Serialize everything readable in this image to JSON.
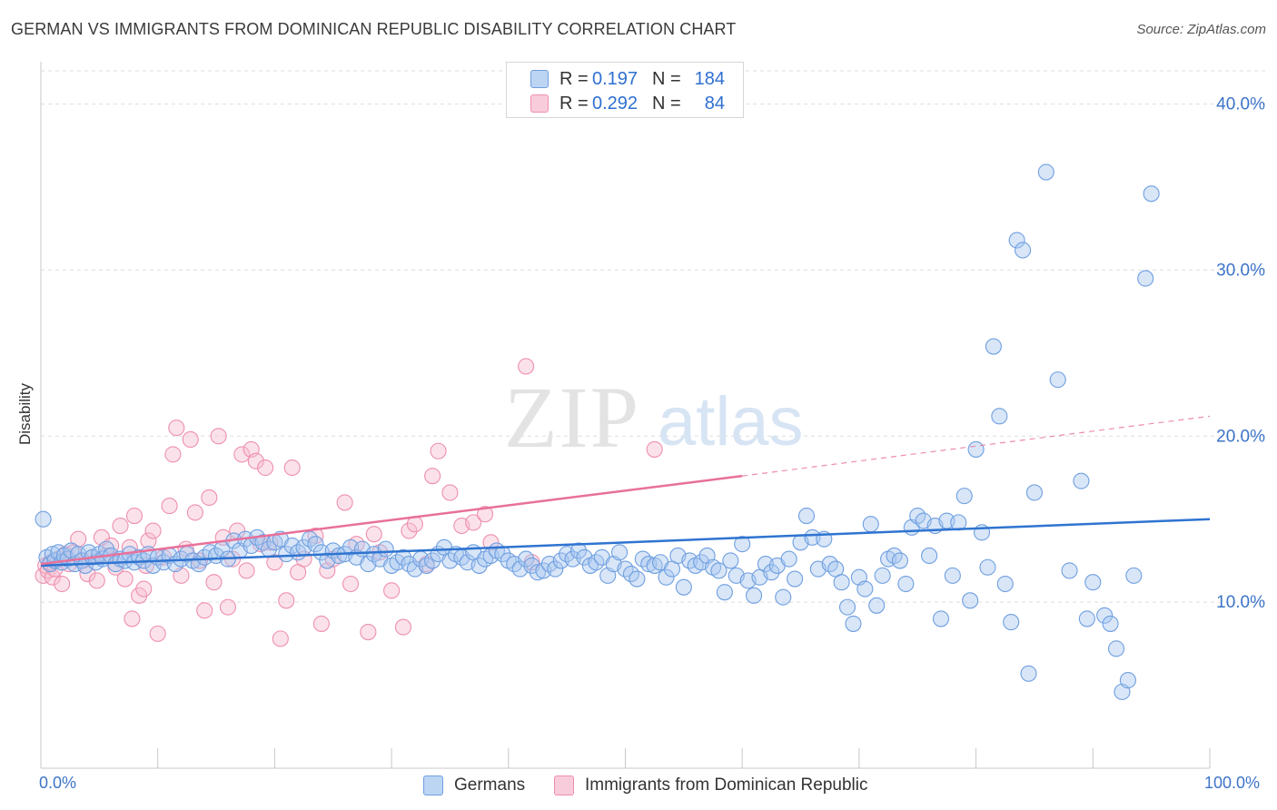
{
  "title": "GERMAN VS IMMIGRANTS FROM DOMINICAN REPUBLIC DISABILITY CORRELATION CHART",
  "source": "Source: ZipAtlas.com",
  "watermark": {
    "zip": "ZIP",
    "atlas": "atlas"
  },
  "colors": {
    "blue_fill": "#a9c8ef",
    "blue_stroke": "#6f9fe0",
    "blue_line": "#2f74d0",
    "pink_fill": "#f6bed0",
    "pink_stroke": "#ee8fae",
    "pink_line": "#e8709a",
    "axis_text": "#3d74c9",
    "grid": "#dddddd"
  },
  "legend": {
    "rows": [
      {
        "r_label": "R =",
        "r_value": "0.197",
        "n_label": "N =",
        "n_value": "184",
        "series": "Germans"
      },
      {
        "r_label": "R =",
        "r_value": "0.292",
        "n_label": "N =",
        "n_value": "84",
        "series": "Immigrants from Dominican Republic"
      }
    ]
  },
  "bottom_legend": {
    "germans": "Germans",
    "dominican": "Immigrants from Dominican Republic"
  },
  "chart_data": {
    "type": "scatter",
    "title": "GERMAN VS IMMIGRANTS FROM DOMINICAN REPUBLIC DISABILITY CORRELATION CHART",
    "xlabel": "",
    "ylabel": "Disability",
    "xlim": [
      0,
      100
    ],
    "ylim": [
      0,
      42
    ],
    "x_tick_labels": [
      "0.0%",
      "100.0%"
    ],
    "y_ticks": [
      10,
      20,
      30,
      40
    ],
    "y_tick_labels": [
      "10.0%",
      "20.0%",
      "30.0%",
      "40.0%"
    ],
    "grid": true,
    "legend_position": "top-center",
    "series": [
      {
        "name": "Germans",
        "color": "#a9c8ef",
        "trend": {
          "x": [
            0,
            100
          ],
          "y": [
            12.2,
            15.0
          ],
          "style": "solid"
        },
        "points": [
          [
            0.2,
            15.0
          ],
          [
            0.5,
            12.7
          ],
          [
            0.8,
            12.3
          ],
          [
            1.0,
            12.9
          ],
          [
            1.2,
            12.5
          ],
          [
            1.5,
            13.0
          ],
          [
            1.8,
            12.4
          ],
          [
            2.0,
            12.8
          ],
          [
            2.3,
            12.6
          ],
          [
            2.6,
            13.1
          ],
          [
            2.9,
            12.3
          ],
          [
            3.2,
            12.9
          ],
          [
            3.5,
            12.5
          ],
          [
            3.8,
            12.2
          ],
          [
            4.1,
            13.0
          ],
          [
            4.4,
            12.7
          ],
          [
            4.7,
            12.4
          ],
          [
            5.0,
            12.9
          ],
          [
            5.3,
            12.6
          ],
          [
            5.6,
            13.2
          ],
          [
            6.0,
            12.8
          ],
          [
            6.4,
            12.3
          ],
          [
            6.8,
            12.6
          ],
          [
            7.2,
            12.5
          ],
          [
            7.6,
            12.9
          ],
          [
            8.0,
            12.4
          ],
          [
            8.4,
            12.7
          ],
          [
            8.8,
            12.5
          ],
          [
            9.2,
            12.9
          ],
          [
            9.6,
            12.2
          ],
          [
            10.0,
            12.7
          ],
          [
            10.5,
            12.4
          ],
          [
            11.0,
            12.8
          ],
          [
            11.5,
            12.3
          ],
          [
            12.0,
            12.6
          ],
          [
            12.5,
            12.9
          ],
          [
            13.0,
            12.5
          ],
          [
            13.5,
            12.3
          ],
          [
            14.0,
            12.7
          ],
          [
            14.5,
            13.0
          ],
          [
            15.0,
            12.8
          ],
          [
            15.5,
            13.2
          ],
          [
            16.0,
            12.6
          ],
          [
            16.5,
            13.7
          ],
          [
            17.0,
            13.1
          ],
          [
            17.5,
            13.8
          ],
          [
            18.0,
            13.4
          ],
          [
            18.5,
            13.9
          ],
          [
            19.0,
            13.6
          ],
          [
            19.5,
            13.2
          ],
          [
            20.0,
            13.6
          ],
          [
            20.5,
            13.8
          ],
          [
            21.0,
            12.9
          ],
          [
            21.5,
            13.4
          ],
          [
            22.0,
            13.0
          ],
          [
            22.5,
            13.3
          ],
          [
            23.0,
            13.8
          ],
          [
            23.5,
            13.5
          ],
          [
            24.0,
            13.0
          ],
          [
            24.5,
            12.5
          ],
          [
            25.0,
            13.1
          ],
          [
            25.5,
            12.8
          ],
          [
            26.0,
            12.9
          ],
          [
            26.5,
            13.3
          ],
          [
            27.0,
            12.7
          ],
          [
            27.5,
            13.2
          ],
          [
            28.0,
            12.3
          ],
          [
            28.5,
            12.9
          ],
          [
            29.0,
            12.6
          ],
          [
            29.5,
            13.2
          ],
          [
            30.0,
            12.2
          ],
          [
            30.5,
            12.4
          ],
          [
            31.0,
            12.7
          ],
          [
            31.5,
            12.3
          ],
          [
            32.0,
            12.0
          ],
          [
            32.5,
            12.6
          ],
          [
            33.0,
            12.2
          ],
          [
            33.5,
            12.5
          ],
          [
            34.0,
            12.9
          ],
          [
            34.5,
            13.3
          ],
          [
            35.0,
            12.5
          ],
          [
            35.5,
            12.9
          ],
          [
            36.0,
            12.7
          ],
          [
            36.5,
            12.4
          ],
          [
            37.0,
            13.0
          ],
          [
            37.5,
            12.2
          ],
          [
            38.0,
            12.6
          ],
          [
            38.5,
            12.8
          ],
          [
            39.0,
            13.1
          ],
          [
            39.5,
            12.9
          ],
          [
            40.0,
            12.5
          ],
          [
            40.5,
            12.3
          ],
          [
            41.0,
            12.0
          ],
          [
            41.5,
            12.6
          ],
          [
            42.0,
            12.2
          ],
          [
            42.5,
            11.8
          ],
          [
            43.0,
            11.9
          ],
          [
            43.5,
            12.3
          ],
          [
            44.0,
            12.0
          ],
          [
            44.5,
            12.5
          ],
          [
            45.0,
            12.9
          ],
          [
            45.5,
            12.6
          ],
          [
            46.0,
            13.1
          ],
          [
            46.5,
            12.7
          ],
          [
            47.0,
            12.2
          ],
          [
            47.5,
            12.4
          ],
          [
            48.0,
            12.7
          ],
          [
            48.5,
            11.6
          ],
          [
            49.0,
            12.3
          ],
          [
            49.5,
            13.0
          ],
          [
            50.0,
            12.0
          ],
          [
            50.5,
            11.7
          ],
          [
            51.0,
            11.4
          ],
          [
            51.5,
            12.6
          ],
          [
            52.0,
            12.3
          ],
          [
            52.5,
            12.2
          ],
          [
            53.0,
            12.4
          ],
          [
            53.5,
            11.5
          ],
          [
            54.0,
            12.0
          ],
          [
            54.5,
            12.8
          ],
          [
            55.0,
            10.9
          ],
          [
            55.5,
            12.5
          ],
          [
            56.0,
            12.2
          ],
          [
            56.5,
            12.4
          ],
          [
            57.0,
            12.8
          ],
          [
            57.5,
            12.1
          ],
          [
            58.0,
            11.9
          ],
          [
            58.5,
            10.6
          ],
          [
            59.0,
            12.5
          ],
          [
            59.5,
            11.6
          ],
          [
            60.0,
            13.5
          ],
          [
            60.5,
            11.3
          ],
          [
            61.0,
            10.4
          ],
          [
            61.5,
            11.5
          ],
          [
            62.0,
            12.3
          ],
          [
            62.5,
            11.8
          ],
          [
            63.0,
            12.2
          ],
          [
            63.5,
            10.3
          ],
          [
            64.0,
            12.6
          ],
          [
            64.5,
            11.4
          ],
          [
            65.0,
            13.6
          ],
          [
            65.5,
            15.2
          ],
          [
            66.0,
            13.9
          ],
          [
            66.5,
            12.0
          ],
          [
            67.0,
            13.8
          ],
          [
            67.5,
            12.3
          ],
          [
            68.0,
            12.0
          ],
          [
            68.5,
            11.2
          ],
          [
            69.0,
            9.7
          ],
          [
            69.5,
            8.7
          ],
          [
            70.0,
            11.5
          ],
          [
            70.5,
            10.8
          ],
          [
            71.0,
            14.7
          ],
          [
            71.5,
            9.8
          ],
          [
            72.0,
            11.6
          ],
          [
            72.5,
            12.6
          ],
          [
            73.0,
            12.8
          ],
          [
            73.5,
            12.5
          ],
          [
            74.0,
            11.1
          ],
          [
            74.5,
            14.5
          ],
          [
            75.0,
            15.2
          ],
          [
            75.5,
            14.9
          ],
          [
            76.0,
            12.8
          ],
          [
            76.5,
            14.6
          ],
          [
            77.0,
            9.0
          ],
          [
            77.5,
            14.9
          ],
          [
            78.0,
            11.6
          ],
          [
            78.5,
            14.8
          ],
          [
            79.0,
            16.4
          ],
          [
            79.5,
            10.1
          ],
          [
            80.0,
            19.2
          ],
          [
            80.5,
            14.2
          ],
          [
            81.0,
            12.1
          ],
          [
            81.5,
            25.4
          ],
          [
            82.0,
            21.2
          ],
          [
            82.5,
            11.1
          ],
          [
            83.0,
            8.8
          ],
          [
            83.5,
            31.8
          ],
          [
            84.0,
            31.2
          ],
          [
            84.5,
            5.7
          ],
          [
            85.0,
            16.6
          ],
          [
            86.0,
            35.9
          ],
          [
            87.0,
            23.4
          ],
          [
            88.0,
            11.9
          ],
          [
            89.0,
            17.3
          ],
          [
            89.5,
            9.0
          ],
          [
            90.0,
            11.2
          ],
          [
            91.0,
            9.2
          ],
          [
            91.5,
            8.7
          ],
          [
            92.0,
            7.2
          ],
          [
            92.5,
            4.6
          ],
          [
            93.0,
            5.3
          ],
          [
            93.5,
            11.6
          ],
          [
            95.0,
            34.6
          ],
          [
            94.5,
            29.5
          ]
        ]
      },
      {
        "name": "Immigrants from Dominican Republic",
        "color": "#f6bed0",
        "trend": {
          "x": [
            0,
            60
          ],
          "y": [
            12.3,
            17.6
          ],
          "x_dashed": [
            60,
            100
          ],
          "y_dashed": [
            17.6,
            21.2
          ],
          "style": "solid-then-dashed"
        },
        "points": [
          [
            0.2,
            11.6
          ],
          [
            0.4,
            12.2
          ],
          [
            0.6,
            11.9
          ],
          [
            0.8,
            12.4
          ],
          [
            1.0,
            11.5
          ],
          [
            1.2,
            12.0
          ],
          [
            1.5,
            12.6
          ],
          [
            1.8,
            11.1
          ],
          [
            2.1,
            12.9
          ],
          [
            2.4,
            12.3
          ],
          [
            2.8,
            13.0
          ],
          [
            3.2,
            13.8
          ],
          [
            3.6,
            12.5
          ],
          [
            4.0,
            11.7
          ],
          [
            4.4,
            12.7
          ],
          [
            4.8,
            11.3
          ],
          [
            5.2,
            13.9
          ],
          [
            5.6,
            12.8
          ],
          [
            6.0,
            13.4
          ],
          [
            6.4,
            12.1
          ],
          [
            6.8,
            14.6
          ],
          [
            7.2,
            11.4
          ],
          [
            7.6,
            13.3
          ],
          [
            7.8,
            9.0
          ],
          [
            8.0,
            15.2
          ],
          [
            8.4,
            10.4
          ],
          [
            8.8,
            10.8
          ],
          [
            9.2,
            13.7
          ],
          [
            9.6,
            14.3
          ],
          [
            9.0,
            12.2
          ],
          [
            10.0,
            8.1
          ],
          [
            10.5,
            12.7
          ],
          [
            11.0,
            15.8
          ],
          [
            11.3,
            18.9
          ],
          [
            11.6,
            20.5
          ],
          [
            12.0,
            11.6
          ],
          [
            12.4,
            13.2
          ],
          [
            12.8,
            19.8
          ],
          [
            13.2,
            15.4
          ],
          [
            13.6,
            12.5
          ],
          [
            14.0,
            9.5
          ],
          [
            14.4,
            16.3
          ],
          [
            14.8,
            11.2
          ],
          [
            15.2,
            20.0
          ],
          [
            15.6,
            13.9
          ],
          [
            16.0,
            9.7
          ],
          [
            16.4,
            12.6
          ],
          [
            16.8,
            14.3
          ],
          [
            17.2,
            18.9
          ],
          [
            17.6,
            11.9
          ],
          [
            18.0,
            19.2
          ],
          [
            18.4,
            18.5
          ],
          [
            18.8,
            13.5
          ],
          [
            19.2,
            18.1
          ],
          [
            19.6,
            13.6
          ],
          [
            20.0,
            12.4
          ],
          [
            20.5,
            7.8
          ],
          [
            21.0,
            10.1
          ],
          [
            21.5,
            18.1
          ],
          [
            22.0,
            11.8
          ],
          [
            22.5,
            12.6
          ],
          [
            23.5,
            14.0
          ],
          [
            24.0,
            8.7
          ],
          [
            24.5,
            11.9
          ],
          [
            25.0,
            12.6
          ],
          [
            26.0,
            16.0
          ],
          [
            26.5,
            11.1
          ],
          [
            27.0,
            13.5
          ],
          [
            28.0,
            8.2
          ],
          [
            28.5,
            14.1
          ],
          [
            29.0,
            13.0
          ],
          [
            30.0,
            10.7
          ],
          [
            31.0,
            8.5
          ],
          [
            31.5,
            14.3
          ],
          [
            32.0,
            14.7
          ],
          [
            33.0,
            12.3
          ],
          [
            33.5,
            17.6
          ],
          [
            34.0,
            19.1
          ],
          [
            35.0,
            16.6
          ],
          [
            36.0,
            14.6
          ],
          [
            37.0,
            14.8
          ],
          [
            38.0,
            15.3
          ],
          [
            38.5,
            13.6
          ],
          [
            41.5,
            24.2
          ],
          [
            42.0,
            12.4
          ],
          [
            52.5,
            19.2
          ]
        ]
      }
    ]
  }
}
